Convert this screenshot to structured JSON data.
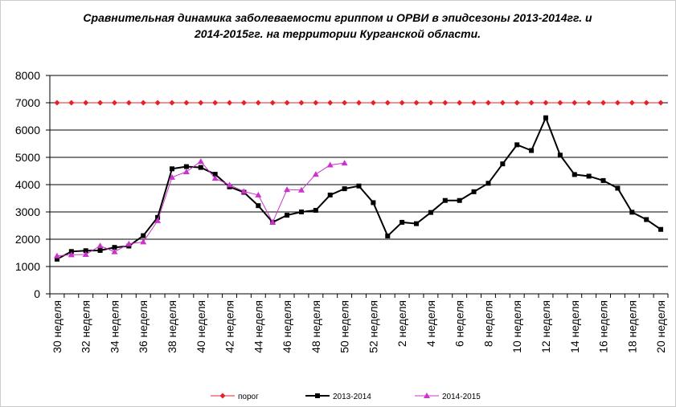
{
  "chart_data": {
    "type": "line",
    "title": "Сравнительная динамика заболеваемости гриппом и ОРВИ в эпидсезоны 2013-2014гг. и 2014-2015гг. на территории Курганской области.",
    "categories": [
      "30 неделя",
      null,
      "32 неделя",
      null,
      "34 неделя",
      null,
      "36 неделя",
      null,
      "38 неделя",
      null,
      "40 неделя",
      null,
      "42 неделя",
      null,
      "44 неделя",
      null,
      "46 неделя",
      null,
      "48 неделя",
      null,
      "50 неделя",
      null,
      "52 неделя",
      null,
      "2 неделя",
      null,
      "4 неделя",
      null,
      "6 неделя",
      null,
      "8 неделя",
      null,
      "10 неделя",
      null,
      "12 неделя",
      null,
      "14 неделя",
      null,
      "16 неделя",
      null,
      "18 неделя",
      null,
      "20 неделя"
    ],
    "series": [
      {
        "name": "порог",
        "color": "#e8202a",
        "marker": "diamond",
        "values": [
          7000,
          7000,
          7000,
          7000,
          7000,
          7000,
          7000,
          7000,
          7000,
          7000,
          7000,
          7000,
          7000,
          7000,
          7000,
          7000,
          7000,
          7000,
          7000,
          7000,
          7000,
          7000,
          7000,
          7000,
          7000,
          7000,
          7000,
          7000,
          7000,
          7000,
          7000,
          7000,
          7000,
          7000,
          7000,
          7000,
          7000,
          7000,
          7000,
          7000,
          7000,
          7000,
          7000
        ]
      },
      {
        "name": "2013-2014",
        "color": "#000000",
        "marker": "square",
        "values": [
          1270,
          1550,
          1580,
          1590,
          1700,
          1750,
          2130,
          2800,
          4580,
          4660,
          4630,
          4380,
          3920,
          3720,
          3230,
          2620,
          2880,
          3000,
          3060,
          3620,
          3850,
          3950,
          3340,
          2120,
          2620,
          2570,
          2980,
          3420,
          3420,
          3740,
          4050,
          4760,
          5460,
          5250,
          6450,
          5080,
          4370,
          4310,
          4150,
          3870,
          2990,
          2720,
          2360
        ]
      },
      {
        "name": "2014-2015",
        "color": "#cc33cc",
        "marker": "triangle",
        "values": [
          1390,
          1430,
          1440,
          1760,
          1540,
          1830,
          1900,
          2680,
          4270,
          4470,
          4850,
          4230,
          3990,
          3750,
          3620,
          2620,
          3820,
          3800,
          4380,
          4720,
          4790,
          null,
          null,
          null,
          null,
          null,
          null,
          null,
          null,
          null,
          null,
          null,
          null,
          null,
          null,
          null,
          null,
          null,
          null,
          null,
          null,
          null,
          null
        ]
      }
    ],
    "ylim": [
      0,
      8000
    ],
    "yticks": [
      0,
      1000,
      2000,
      3000,
      4000,
      5000,
      6000,
      7000,
      8000
    ],
    "grid": true,
    "legend": "bottom"
  }
}
